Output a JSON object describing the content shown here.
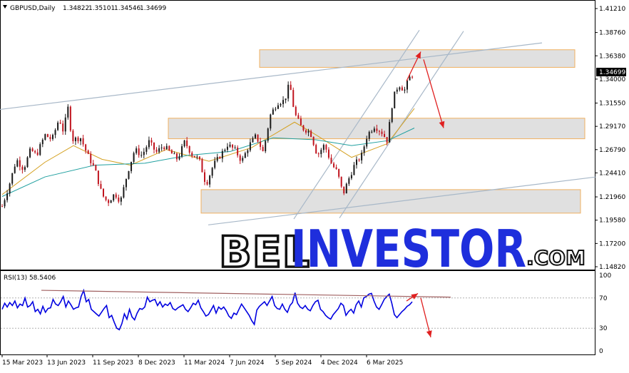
{
  "header": {
    "symbol": "GBPUSD,Daily",
    "ohlc": [
      "1.34822",
      "1.35101",
      "1.34546",
      "1.34699"
    ],
    "current_price": "1.34699"
  },
  "rsi_header": "RSI(13) 58.5406",
  "watermark": {
    "left": "BEL",
    "right": "INVESTOR",
    "suffix": ".COM"
  },
  "colors": {
    "up_candle": "#1a1a1a",
    "down_candle": "#c0141e",
    "ma_fast": "#d4a020",
    "ma_slow": "#20a0a0",
    "rsi_line": "#0000e0",
    "zone_fill": "#e0e0e0",
    "zone_border": "#f0b060",
    "trend_lines": "#a8b8c8",
    "arrows": "#e02020",
    "rsi_trend": "#a06060",
    "price_tag_bg": "#000000"
  },
  "chart_data": [
    {
      "type": "candlestick",
      "title": "GBPUSD,Daily",
      "ylim": [
        1.1482,
        1.4121
      ],
      "y_ticks": [
        "1.41210",
        "1.38760",
        "1.36380",
        "1.34000",
        "1.31550",
        "1.29170",
        "1.26790",
        "1.24410",
        "1.21960",
        "1.19580",
        "1.17200",
        "1.14820"
      ],
      "x_ticks": [
        "15 Mar 2023",
        "13 Jun 2023",
        "11 Sep 2023",
        "8 Dec 2023",
        "11 Mar 2024",
        "7 Jun 2024",
        "5 Sep 2024",
        "4 Dec 2024",
        "6 Mar 2025"
      ],
      "price_path": [
        [
          0,
          1.21
        ],
        [
          10,
          1.232
        ],
        [
          20,
          1.258
        ],
        [
          30,
          1.248
        ],
        [
          40,
          1.268
        ],
        [
          48,
          1.262
        ],
        [
          60,
          1.283
        ],
        [
          70,
          1.278
        ],
        [
          80,
          1.3
        ],
        [
          86,
          1.286
        ],
        [
          92,
          1.312
        ],
        [
          98,
          1.278
        ],
        [
          110,
          1.28
        ],
        [
          120,
          1.262
        ],
        [
          130,
          1.248
        ],
        [
          140,
          1.222
        ],
        [
          148,
          1.214
        ],
        [
          158,
          1.223
        ],
        [
          166,
          1.215
        ],
        [
          176,
          1.245
        ],
        [
          186,
          1.268
        ],
        [
          196,
          1.262
        ],
        [
          206,
          1.276
        ],
        [
          216,
          1.265
        ],
        [
          226,
          1.272
        ],
        [
          236,
          1.265
        ],
        [
          246,
          1.258
        ],
        [
          256,
          1.276
        ],
        [
          266,
          1.263
        ],
        [
          276,
          1.258
        ],
        [
          286,
          1.232
        ],
        [
          296,
          1.252
        ],
        [
          306,
          1.262
        ],
        [
          316,
          1.273
        ],
        [
          326,
          1.268
        ],
        [
          336,
          1.256
        ],
        [
          346,
          1.272
        ],
        [
          356,
          1.282
        ],
        [
          366,
          1.265
        ],
        [
          376,
          1.303
        ],
        [
          386,
          1.316
        ],
        [
          396,
          1.318
        ],
        [
          403,
          1.336
        ],
        [
          410,
          1.305
        ],
        [
          420,
          1.29
        ],
        [
          432,
          1.286
        ],
        [
          442,
          1.262
        ],
        [
          452,
          1.273
        ],
        [
          462,
          1.253
        ],
        [
          470,
          1.245
        ],
        [
          478,
          1.222
        ],
        [
          486,
          1.238
        ],
        [
          494,
          1.252
        ],
        [
          504,
          1.262
        ],
        [
          512,
          1.283
        ],
        [
          522,
          1.292
        ],
        [
          532,
          1.286
        ],
        [
          540,
          1.277
        ],
        [
          548,
          1.32
        ],
        [
          556,
          1.335
        ],
        [
          564,
          1.328
        ],
        [
          570,
          1.34
        ],
        [
          578,
          1.347
        ]
      ],
      "moving_averages": [
        {
          "name": "fast",
          "color": "#d4a020",
          "points": [
            [
              0,
              1.222
            ],
            [
              60,
              1.255
            ],
            [
              100,
              1.272
            ],
            [
              140,
              1.258
            ],
            [
              180,
              1.252
            ],
            [
              230,
              1.268
            ],
            [
              290,
              1.256
            ],
            [
              350,
              1.27
            ],
            [
              410,
              1.296
            ],
            [
              440,
              1.283
            ],
            [
              490,
              1.26
            ],
            [
              540,
              1.274
            ],
            [
              578,
              1.31
            ]
          ]
        },
        {
          "name": "slow",
          "color": "#20a0a0",
          "points": [
            [
              0,
              1.22
            ],
            [
              60,
              1.24
            ],
            [
              130,
              1.252
            ],
            [
              200,
              1.254
            ],
            [
              260,
              1.262
            ],
            [
              320,
              1.266
            ],
            [
              380,
              1.28
            ],
            [
              440,
              1.278
            ],
            [
              490,
              1.272
            ],
            [
              540,
              1.277
            ],
            [
              578,
              1.29
            ]
          ]
        }
      ],
      "zones": [
        {
          "top": 1.37,
          "bottom": 1.352
        },
        {
          "top": 1.3,
          "bottom": 1.279
        },
        {
          "top": 1.227,
          "bottom": 1.203
        }
      ],
      "trend_lines": [
        [
          [
            0,
            1.309
          ],
          [
            760,
            1.377
          ]
        ],
        [
          [
            292,
            1.191
          ],
          [
            836,
            1.24
          ]
        ],
        [
          [
            412,
            1.197
          ],
          [
            588,
            1.39
          ]
        ],
        [
          [
            476,
            1.198
          ],
          [
            650,
            1.389
          ]
        ]
      ],
      "arrows": [
        {
          "from": [
            570,
            1.338
          ],
          "to": [
            590,
            1.368
          ]
        },
        {
          "from": [
            594,
            1.36
          ],
          "to": [
            622,
            1.29
          ]
        }
      ]
    },
    {
      "type": "line",
      "title": "RSI(13) 58.5406",
      "ylim": [
        0,
        100
      ],
      "y_ticks": [
        "100",
        "70",
        "30",
        "0"
      ],
      "levels": [
        70,
        30
      ],
      "series": [
        {
          "name": "RSI(13)",
          "values": [
            55,
            63,
            58,
            64,
            60,
            66,
            57,
            62,
            60,
            70,
            58,
            60,
            65,
            52,
            55,
            49,
            59,
            51,
            56,
            57,
            68,
            62,
            60,
            65,
            72,
            58,
            66,
            61,
            55,
            57,
            58,
            72,
            80,
            65,
            68,
            55,
            52,
            49,
            46,
            51,
            56,
            60,
            44,
            47,
            38,
            30,
            28,
            36,
            49,
            42,
            55,
            45,
            41,
            50,
            56,
            55,
            58,
            71,
            65,
            67,
            68,
            60,
            65,
            58,
            62,
            60,
            64,
            56,
            54,
            57,
            59,
            61,
            55,
            52,
            57,
            63,
            61,
            67,
            57,
            52,
            46,
            48,
            54,
            60,
            50,
            58,
            55,
            58,
            53,
            46,
            43,
            50,
            48,
            55,
            62,
            57,
            52,
            47,
            40,
            35,
            54,
            59,
            62,
            65,
            60,
            66,
            72,
            60,
            56,
            55,
            62,
            55,
            51,
            60,
            64,
            77,
            63,
            58,
            56,
            60,
            55,
            53,
            60,
            65,
            67,
            55,
            52,
            47,
            44,
            42,
            48,
            52,
            56,
            63,
            60,
            47,
            52,
            55,
            50,
            61,
            66,
            58,
            70,
            72,
            75,
            76,
            66,
            58,
            55,
            61,
            68,
            72,
            75,
            63,
            48,
            44,
            48,
            52,
            55,
            59,
            61,
            65
          ]
        }
      ],
      "trend_line": [
        [
          0,
          82
        ],
        [
          632,
          73
        ]
      ],
      "arrows": [
        {
          "from": [
            570,
            66
          ],
          "to": [
            586,
            76
          ]
        },
        {
          "from": [
            590,
            70
          ],
          "to": [
            604,
            18
          ]
        }
      ]
    }
  ]
}
